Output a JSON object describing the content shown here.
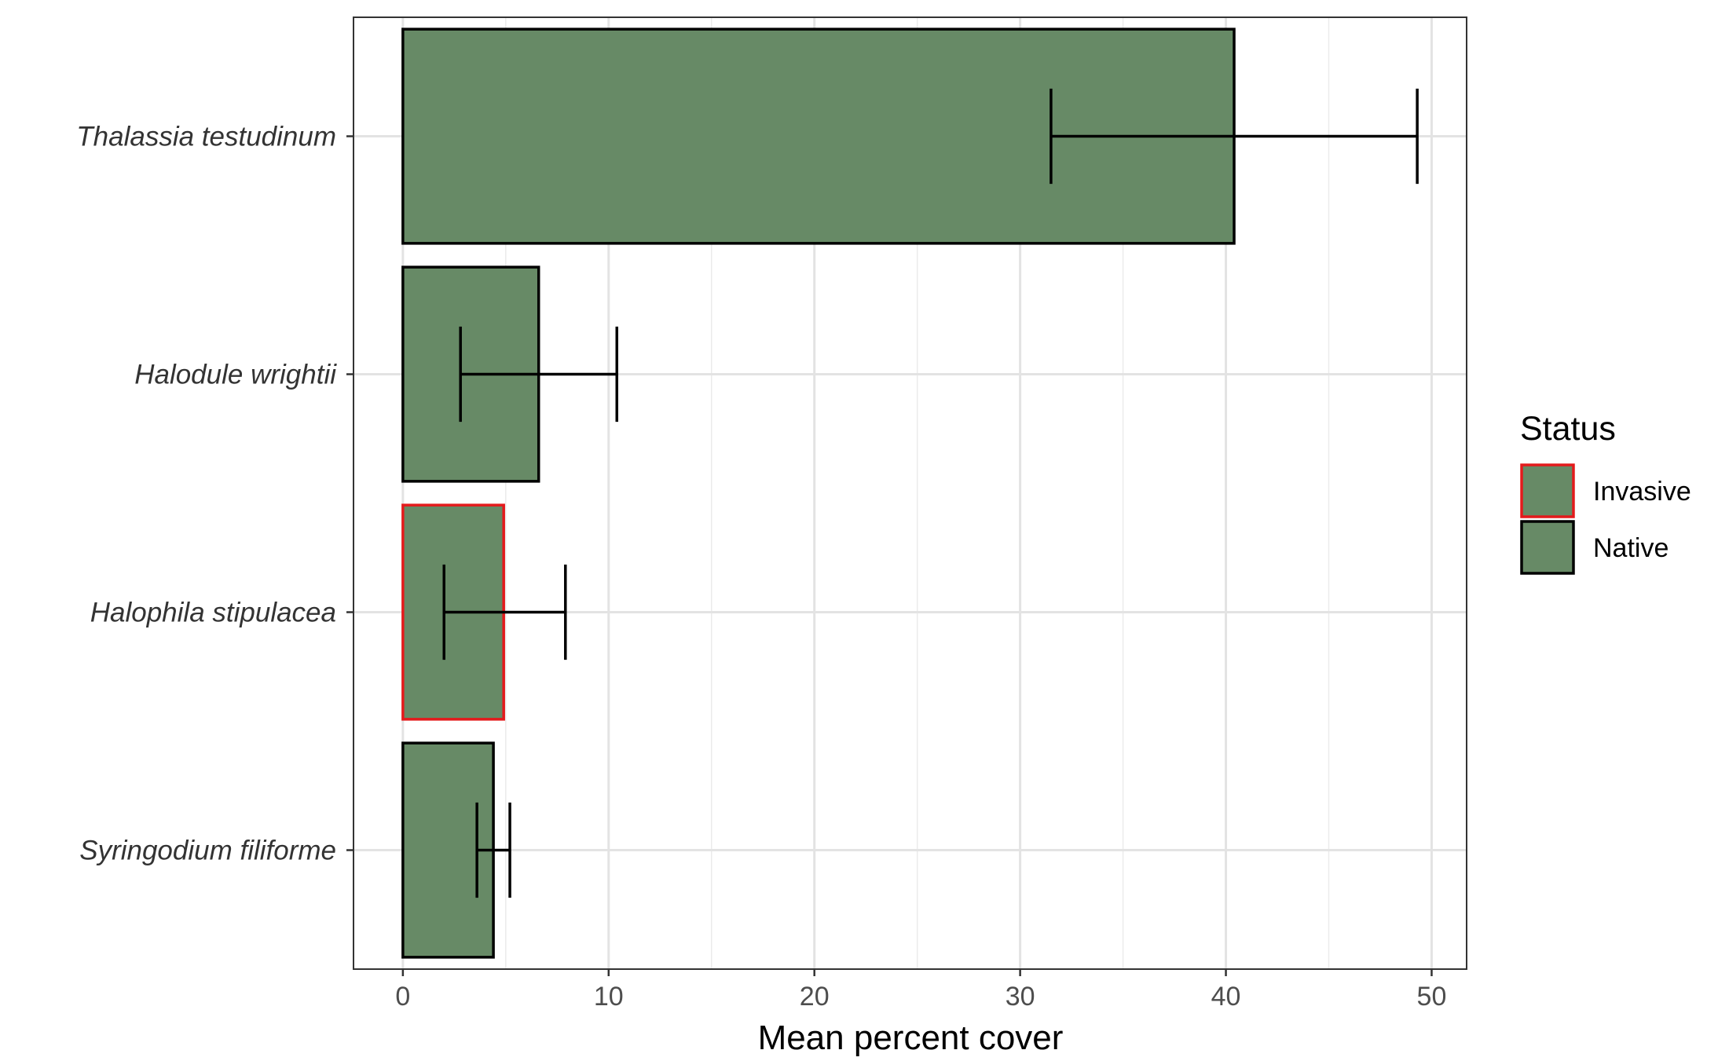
{
  "chart_data": {
    "type": "bar",
    "orientation": "horizontal",
    "title": "",
    "xlabel": "Mean percent cover",
    "ylabel": "",
    "xlim": [
      -2.4,
      51.7
    ],
    "xticks": [
      0,
      10,
      20,
      30,
      40,
      50
    ],
    "xtick_labels": [
      "0",
      "10",
      "20",
      "30",
      "40",
      "50"
    ],
    "grid": true,
    "categories": [
      "Thalassia testudinum",
      "Halodule wrightii",
      "Halophila stipulacea",
      "Syringodium filiforme"
    ],
    "values": [
      40.4,
      6.6,
      4.9,
      4.4
    ],
    "error_low": [
      31.5,
      2.8,
      2.0,
      3.6
    ],
    "error_high": [
      49.3,
      10.4,
      7.9,
      5.2
    ],
    "status": [
      "Native",
      "Native",
      "Invasive",
      "Native"
    ],
    "fill_color": "#678a66",
    "legend": {
      "title": "Status",
      "placement": "right",
      "entries": [
        {
          "label": "Invasive",
          "outline_color": "#e41a1c"
        },
        {
          "label": "Native",
          "outline_color": "#000000"
        }
      ]
    }
  }
}
